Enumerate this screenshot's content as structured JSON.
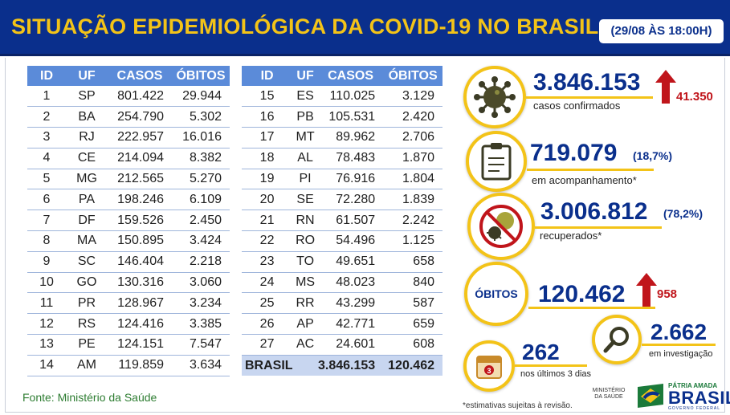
{
  "header": {
    "title": "SITUAÇÃO EPIDEMIOLÓGICA DA COVID-19 NO BRASIL",
    "date": "(29/08 ÀS 18:00H)"
  },
  "colors": {
    "header_bg": "#0a2f8c",
    "accent_yellow": "#f3c318",
    "table_header": "#5b8bd9",
    "delta_red": "#c0151b"
  },
  "table_headers": {
    "id": "ID",
    "uf": "UF",
    "casos": "CASOS",
    "obitos": "ÓBITOS"
  },
  "table_left": [
    {
      "id": "1",
      "uf": "SP",
      "casos": "801.422",
      "obitos": "29.944"
    },
    {
      "id": "2",
      "uf": "BA",
      "casos": "254.790",
      "obitos": "5.302"
    },
    {
      "id": "3",
      "uf": "RJ",
      "casos": "222.957",
      "obitos": "16.016"
    },
    {
      "id": "4",
      "uf": "CE",
      "casos": "214.094",
      "obitos": "8.382"
    },
    {
      "id": "5",
      "uf": "MG",
      "casos": "212.565",
      "obitos": "5.270"
    },
    {
      "id": "6",
      "uf": "PA",
      "casos": "198.246",
      "obitos": "6.109"
    },
    {
      "id": "7",
      "uf": "DF",
      "casos": "159.526",
      "obitos": "2.450"
    },
    {
      "id": "8",
      "uf": "MA",
      "casos": "150.895",
      "obitos": "3.424"
    },
    {
      "id": "9",
      "uf": "SC",
      "casos": "146.404",
      "obitos": "2.218"
    },
    {
      "id": "10",
      "uf": "GO",
      "casos": "130.316",
      "obitos": "3.060"
    },
    {
      "id": "11",
      "uf": "PR",
      "casos": "128.967",
      "obitos": "3.234"
    },
    {
      "id": "12",
      "uf": "RS",
      "casos": "124.416",
      "obitos": "3.385"
    },
    {
      "id": "13",
      "uf": "PE",
      "casos": "124.151",
      "obitos": "7.547"
    },
    {
      "id": "14",
      "uf": "AM",
      "casos": "119.859",
      "obitos": "3.634"
    }
  ],
  "table_right": [
    {
      "id": "15",
      "uf": "ES",
      "casos": "110.025",
      "obitos": "3.129"
    },
    {
      "id": "16",
      "uf": "PB",
      "casos": "105.531",
      "obitos": "2.420"
    },
    {
      "id": "17",
      "uf": "MT",
      "casos": "89.962",
      "obitos": "2.706"
    },
    {
      "id": "18",
      "uf": "AL",
      "casos": "78.483",
      "obitos": "1.870"
    },
    {
      "id": "19",
      "uf": "PI",
      "casos": "76.916",
      "obitos": "1.804"
    },
    {
      "id": "20",
      "uf": "SE",
      "casos": "72.280",
      "obitos": "1.839"
    },
    {
      "id": "21",
      "uf": "RN",
      "casos": "61.507",
      "obitos": "2.242"
    },
    {
      "id": "22",
      "uf": "RO",
      "casos": "54.496",
      "obitos": "1.125"
    },
    {
      "id": "23",
      "uf": "TO",
      "casos": "49.651",
      "obitos": "658"
    },
    {
      "id": "24",
      "uf": "MS",
      "casos": "48.023",
      "obitos": "840"
    },
    {
      "id": "25",
      "uf": "RR",
      "casos": "43.299",
      "obitos": "587"
    },
    {
      "id": "26",
      "uf": "AP",
      "casos": "42.771",
      "obitos": "659"
    },
    {
      "id": "27",
      "uf": "AC",
      "casos": "24.601",
      "obitos": "608"
    }
  ],
  "table_total": {
    "label": "BRASIL",
    "casos": "3.846.153",
    "obitos": "120.462"
  },
  "stats": {
    "confirmed": {
      "value": "3.846.153",
      "label": "casos confirmados",
      "delta": "41.350",
      "icon": "virus-icon"
    },
    "monitoring": {
      "value": "719.079",
      "pct": "(18,7%)",
      "label": "em acompanhamento*",
      "icon": "clipboard-icon"
    },
    "recovered": {
      "value": "3.006.812",
      "pct": "(78,2%)",
      "label": "recuperados*",
      "icon": "no-virus-icon"
    },
    "deaths": {
      "circle_label": "ÓBITOS",
      "value": "120.462",
      "delta": "958"
    },
    "recent": {
      "value": "262",
      "label": "nos últimos 3 dias",
      "icon": "calendar-icon",
      "calendar_number": "3"
    },
    "investigation": {
      "value": "2.662",
      "label": "em investigação",
      "icon": "magnifier-icon"
    }
  },
  "footer": {
    "source": "Fonte: Ministério da Saúde",
    "footnote": "*estimativas sujeitas à revisão.",
    "ministry_logo": "MINISTÉRIO DA SAÚDE",
    "gov_logo_top": "PÁTRIA AMADA",
    "gov_logo_main": "BRASIL",
    "gov_logo_sub": "GOVERNO FEDERAL"
  }
}
